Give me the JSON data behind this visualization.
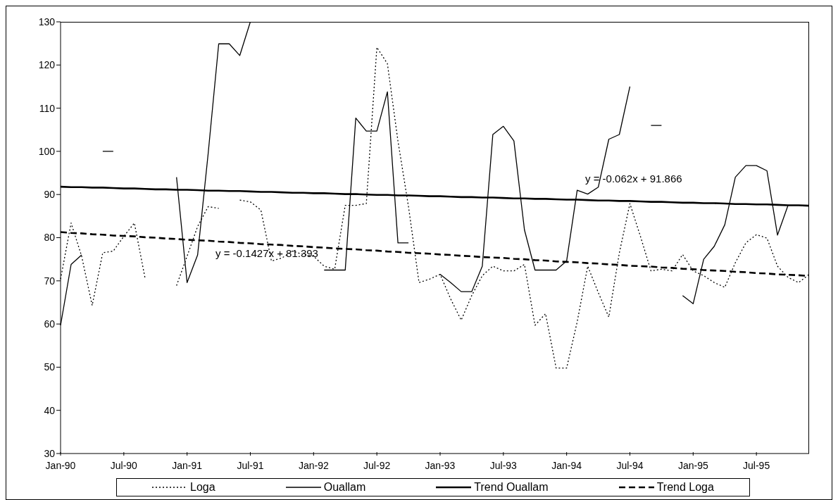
{
  "chart_data": {
    "type": "line",
    "categories": [
      "Jan-90",
      null,
      null,
      null,
      null,
      null,
      "Jul-90",
      null,
      null,
      null,
      null,
      null,
      "Jan-91",
      null,
      null,
      null,
      null,
      null,
      "Jul-91",
      null,
      null,
      null,
      null,
      null,
      "Jan-92",
      null,
      null,
      null,
      null,
      null,
      "Jul-92",
      null,
      null,
      null,
      null,
      null,
      "Jan-93",
      null,
      null,
      null,
      null,
      null,
      "Jul-93",
      null,
      null,
      null,
      null,
      null,
      "Jan-94",
      null,
      null,
      null,
      null,
      null,
      "Jul-94",
      null,
      null,
      null,
      null,
      null,
      "Jan-95",
      null,
      null,
      null,
      null,
      null,
      "Jul-95",
      null,
      null,
      null,
      null,
      null
    ],
    "series": [
      {
        "name": "Loga",
        "color": "#000000",
        "line_style": "dotted",
        "values": [
          70.4,
          83.4,
          75.7,
          64.3,
          76.5,
          76.9,
          80.3,
          83.4,
          70.8,
          null,
          null,
          68.9,
          75.7,
          82.6,
          87.2,
          86.8,
          null,
          88.7,
          88.3,
          86.4,
          74.6,
          75.3,
          76.9,
          76.1,
          75.7,
          73.4,
          72.7,
          87.5,
          87.5,
          87.9,
          124.1,
          120.3,
          102.4,
          87.2,
          69.6,
          70.4,
          71.5,
          65.8,
          60.9,
          66.6,
          71.2,
          73.4,
          72.3,
          72.3,
          73.8,
          59.7,
          62.4,
          49.8,
          49.8,
          60.5,
          73.4,
          67.3,
          61.6,
          76.5,
          87.9,
          80.3,
          72.3,
          72.7,
          72.3,
          76.1,
          72.3,
          71.2,
          69.6,
          68.5,
          74.2,
          78.8,
          80.7,
          79.9,
          73.4,
          70.8,
          69.6,
          71.5
        ]
      },
      {
        "name": "Ouallam",
        "color": "#000000",
        "line_style": "solid",
        "values": [
          59.7,
          73.8,
          76,
          null,
          100,
          100,
          null,
          null,
          null,
          null,
          null,
          94,
          69.6,
          76,
          99.5,
          124.9,
          124.9,
          122.2,
          130,
          null,
          null,
          null,
          null,
          null,
          null,
          72.5,
          72.5,
          72.5,
          107.7,
          104.7,
          104.7,
          113.8,
          78.8,
          78.8,
          null,
          null,
          71.5,
          69.6,
          67.5,
          67.5,
          73.4,
          103.9,
          105.8,
          102.4,
          81.8,
          72.5,
          72.5,
          72.5,
          74.6,
          91,
          90.1,
          91.7,
          102.8,
          103.9,
          115,
          null,
          106,
          106,
          null,
          66.6,
          64.7,
          75,
          78,
          83,
          94,
          96.7,
          96.7,
          95.5,
          80.6,
          87.5,
          null,
          null
        ]
      },
      {
        "name": "Trend Ouallam",
        "color": "#000000",
        "line_style": "solid",
        "values": [
          91.8,
          91.7,
          91.7,
          91.6,
          91.6,
          91.5,
          91.4,
          91.4,
          91.3,
          91.2,
          91.2,
          91.1,
          91.1,
          91.0,
          90.9,
          90.9,
          90.8,
          90.8,
          90.7,
          90.6,
          90.6,
          90.5,
          90.4,
          90.4,
          90.3,
          90.3,
          90.2,
          90.1,
          90.1,
          90.0,
          89.9,
          89.9,
          89.8,
          89.8,
          89.7,
          89.6,
          89.6,
          89.5,
          89.4,
          89.4,
          89.3,
          89.3,
          89.2,
          89.1,
          89.1,
          89.0,
          89.0,
          88.9,
          88.8,
          88.8,
          88.7,
          88.6,
          88.6,
          88.5,
          88.5,
          88.4,
          88.3,
          88.3,
          88.2,
          88.1,
          88.1,
          88.0,
          88.0,
          87.9,
          87.8,
          87.8,
          87.7,
          87.7,
          87.6,
          87.5,
          87.5,
          87.4
        ]
      },
      {
        "name": "Trend Loga",
        "color": "#000000",
        "line_style": "dashed",
        "values": [
          81.3,
          81.1,
          81.0,
          80.8,
          80.7,
          80.5,
          80.4,
          80.3,
          80.1,
          80.0,
          79.8,
          79.7,
          79.5,
          79.4,
          79.3,
          79.1,
          79.0,
          78.8,
          78.7,
          78.5,
          78.4,
          78.3,
          78.1,
          78.0,
          77.8,
          77.7,
          77.5,
          77.4,
          77.3,
          77.1,
          77.0,
          76.8,
          76.7,
          76.5,
          76.4,
          76.3,
          76.1,
          76.0,
          75.8,
          75.7,
          75.5,
          75.4,
          75.3,
          75.1,
          75.0,
          74.8,
          74.7,
          74.5,
          74.4,
          74.3,
          74.1,
          74.0,
          73.8,
          73.7,
          73.5,
          73.4,
          73.3,
          73.1,
          73.0,
          72.8,
          72.7,
          72.5,
          72.4,
          72.3,
          72.1,
          72.0,
          71.8,
          71.7,
          71.5,
          71.4,
          71.3,
          71.1
        ]
      }
    ],
    "ylim": [
      30,
      130
    ],
    "yticks": [
      30,
      40,
      50,
      60,
      70,
      80,
      90,
      100,
      110,
      120,
      130
    ],
    "grid": false,
    "legend": "bottom",
    "marker": "none",
    "annotations": [
      "y = -0.1427x + 81.393",
      "y = -0.062x + 91.866"
    ]
  }
}
